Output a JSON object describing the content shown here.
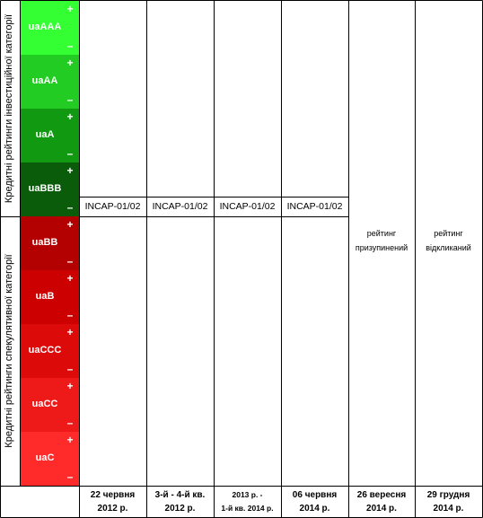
{
  "chart_data": {
    "type": "table",
    "row_groups": [
      {
        "label": "Кредитні рейтинги інвестиційної категорії",
        "ratings": [
          "uaAAA",
          "uaAA",
          "uaA",
          "uaBBB"
        ],
        "colors": [
          "#33ff33",
          "#22cc22",
          "#119911",
          "#0a5c0a"
        ]
      },
      {
        "label": "Кредитні рейтинги спекулятивної категорії",
        "ratings": [
          "uaBB",
          "uaB",
          "uaCCC",
          "uaCC",
          "uaC"
        ],
        "colors": [
          "#b30000",
          "#cc0000",
          "#dd0a0a",
          "#ee1a1a",
          "#ff2a2a"
        ]
      }
    ],
    "columns": [
      {
        "date": [
          "22 червня",
          "2012 р."
        ],
        "entry": "INCAP-01/02"
      },
      {
        "date": [
          "3-й - 4-й кв.",
          "2012 р."
        ],
        "entry": "INCAP-01/02"
      },
      {
        "date": [
          "2013 р. -",
          "1-й кв. 2014 р."
        ],
        "entry": "INCAP-01/02"
      },
      {
        "date": [
          "06 червня",
          "2014 р."
        ],
        "entry": "INCAP-01/02"
      },
      {
        "date": [
          "26 вересня",
          "2014 р."
        ],
        "entry": [
          "рейтинг",
          "призупинений"
        ]
      },
      {
        "date": [
          "29 грудня",
          "2014 р."
        ],
        "entry": [
          "рейтинг",
          "відкликаний"
        ]
      }
    ],
    "notch_signs": [
      "+",
      "–"
    ]
  }
}
